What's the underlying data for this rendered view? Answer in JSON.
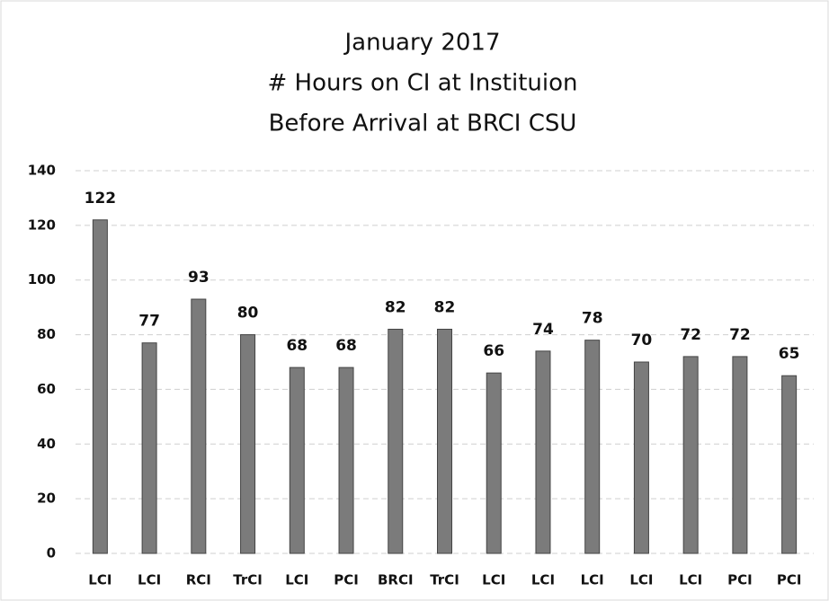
{
  "chart_data": {
    "type": "bar",
    "title": [
      "January 2017",
      "# Hours on CI at Instituion",
      "Before Arrival at BRCI CSU"
    ],
    "categories": [
      "LCI",
      "LCI",
      "RCI",
      "TrCI",
      "LCI",
      "PCI",
      "BRCI",
      "TrCI",
      "LCI",
      "LCI",
      "LCI",
      "LCI",
      "LCI",
      "PCI",
      "PCI"
    ],
    "values": [
      122,
      77,
      93,
      80,
      68,
      68,
      82,
      82,
      66,
      74,
      78,
      70,
      72,
      72,
      65
    ],
    "color": "#7b7b7b",
    "ylim": [
      0,
      140
    ],
    "yticks": [
      0,
      20,
      40,
      60,
      80,
      100,
      120,
      140
    ],
    "grid": true
  }
}
